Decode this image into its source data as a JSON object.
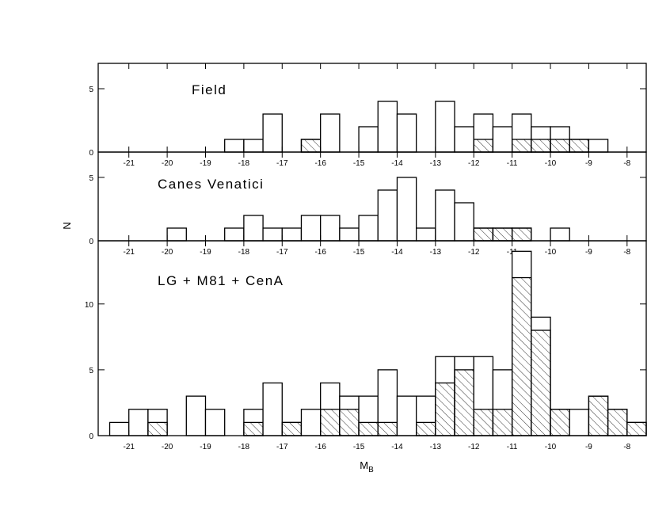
{
  "chart_data": [
    {
      "type": "histogram",
      "label": "Field",
      "bins": [
        -21.5,
        -21,
        -20.5,
        -20,
        -19.5,
        -19,
        -18.5,
        -18,
        -17.5,
        -17,
        -16.5,
        -16,
        -15.5,
        -15,
        -14.5,
        -14,
        -13.5,
        -13,
        -12.5,
        -12,
        -11.5,
        -11,
        -10.5,
        -10,
        -9.5,
        -9,
        -8.5,
        -8,
        -7.5
      ],
      "counts": [
        0,
        0,
        0,
        0,
        0,
        0,
        1,
        1,
        3,
        0,
        1,
        3,
        0,
        2,
        4,
        3,
        0,
        4,
        2,
        3,
        2,
        3,
        2,
        2,
        1,
        1,
        0,
        0
      ],
      "hatched_counts": [
        0,
        0,
        0,
        0,
        0,
        0,
        0,
        0,
        0,
        0,
        1,
        0,
        0,
        0,
        0,
        0,
        0,
        0,
        0,
        1,
        0,
        1,
        1,
        1,
        1,
        0,
        0,
        0
      ],
      "xlim": [
        -21.8,
        -7.5
      ],
      "xticks": [
        -21,
        -20,
        -19,
        -18,
        -17,
        -16,
        -15,
        -14,
        -13,
        -12,
        -11,
        -10,
        -9,
        -8
      ],
      "ylim": [
        0,
        7
      ],
      "yticks": [
        0,
        5
      ]
    },
    {
      "type": "histogram",
      "label": "Canes Venatici",
      "ylabel": "N",
      "bins": [
        -21.5,
        -21,
        -20.5,
        -20,
        -19.5,
        -19,
        -18.5,
        -18,
        -17.5,
        -17,
        -16.5,
        -16,
        -15.5,
        -15,
        -14.5,
        -14,
        -13.5,
        -13,
        -12.5,
        -12,
        -11.5,
        -11,
        -10.5,
        -10,
        -9.5,
        -9,
        -8.5,
        -8,
        -7.5
      ],
      "counts": [
        0,
        0,
        0,
        1,
        0,
        0,
        1,
        2,
        1,
        1,
        2,
        2,
        1,
        2,
        4,
        5,
        1,
        4,
        3,
        1,
        1,
        1,
        0,
        1,
        0,
        0,
        0,
        0
      ],
      "hatched_counts": [
        0,
        0,
        0,
        0,
        0,
        0,
        0,
        0,
        0,
        0,
        0,
        0,
        0,
        0,
        0,
        0,
        0,
        0,
        0,
        1,
        1,
        1,
        0,
        0,
        0,
        0,
        0,
        0
      ],
      "xlim": [
        -21.8,
        -7.5
      ],
      "xticks": [
        -21,
        -20,
        -19,
        -18,
        -17,
        -16,
        -15,
        -14,
        -13,
        -12,
        -11,
        -10,
        -9,
        -8
      ],
      "ylim": [
        0,
        7
      ],
      "yticks": [
        0,
        5
      ]
    },
    {
      "type": "histogram",
      "label": "LG + M81 + CenA",
      "xlabel": "M",
      "xlabel_sub": "B",
      "bins": [
        -21.5,
        -21,
        -20.5,
        -20,
        -19.5,
        -19,
        -18.5,
        -18,
        -17.5,
        -17,
        -16.5,
        -16,
        -15.5,
        -15,
        -14.5,
        -14,
        -13.5,
        -13,
        -12.5,
        -12,
        -11.5,
        -11,
        -10.5,
        -10,
        -9.5,
        -9,
        -8.5,
        -8,
        -7.5
      ],
      "counts": [
        1,
        2,
        2,
        0,
        3,
        2,
        0,
        2,
        4,
        1,
        2,
        4,
        3,
        3,
        5,
        3,
        3,
        6,
        6,
        6,
        5,
        14,
        9,
        2,
        2,
        3,
        2,
        1
      ],
      "hatched_counts": [
        0,
        0,
        1,
        0,
        0,
        0,
        0,
        1,
        0,
        1,
        0,
        2,
        2,
        1,
        1,
        0,
        1,
        4,
        5,
        2,
        2,
        12,
        8,
        2,
        0,
        3,
        2,
        1
      ],
      "xlim": [
        -21.8,
        -7.5
      ],
      "xticks": [
        -21,
        -20,
        -19,
        -18,
        -17,
        -16,
        -15,
        -14,
        -13,
        -12,
        -11,
        -10,
        -9,
        -8
      ],
      "ylim": [
        0,
        14.8
      ],
      "yticks": [
        0,
        5,
        10
      ]
    }
  ]
}
